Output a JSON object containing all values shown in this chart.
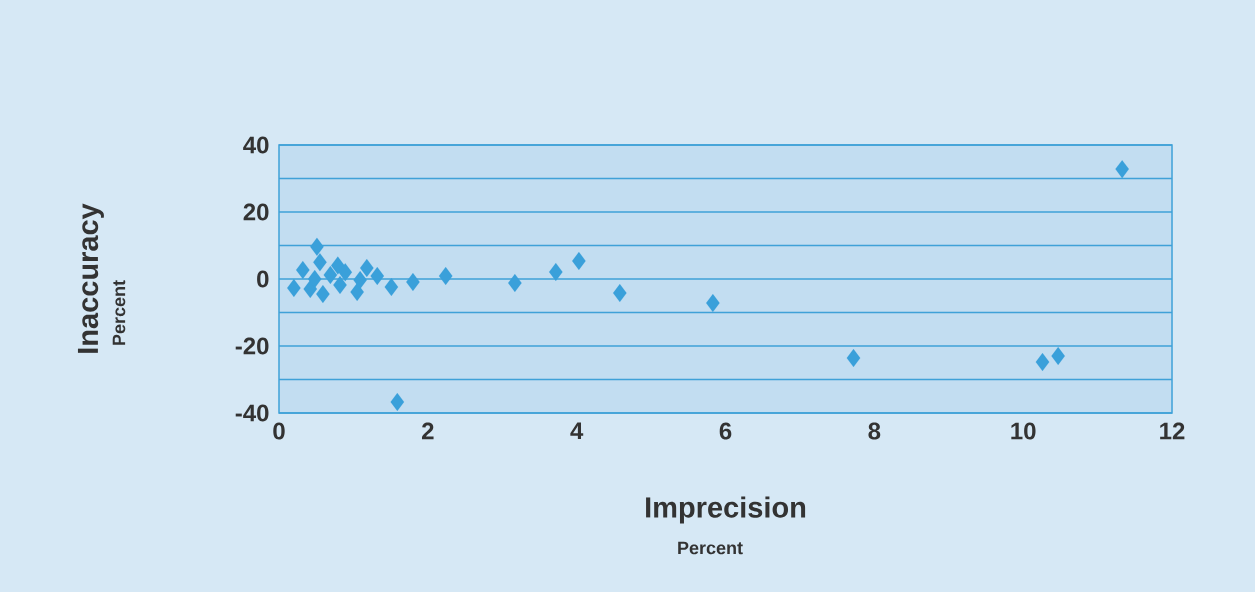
{
  "chart_data": {
    "type": "scatter",
    "xlabel": "Imprecision",
    "ylabel": "Inaccuracy",
    "annotations": [
      "Percent",
      "Percent"
    ],
    "x": [
      0.2,
      0.32,
      0.42,
      0.51,
      0.55,
      0.59,
      0.48,
      0.69,
      0.79,
      0.82,
      0.89,
      1.05,
      1.09,
      1.18,
      1.32,
      1.51,
      1.59,
      1.8,
      2.24,
      3.17,
      3.72,
      4.03,
      4.58,
      5.83,
      7.72,
      10.26,
      10.47,
      11.33
    ],
    "values": [
      -2.7,
      2.7,
      -3,
      9.6,
      5,
      -4.5,
      0,
      1.2,
      4,
      -1.8,
      2,
      -3.9,
      -0.3,
      3.3,
      0.9,
      -2.4,
      -36.7,
      -0.9,
      0.9,
      -1.2,
      2.1,
      5.4,
      -4.2,
      -7.2,
      -23.6,
      -24.8,
      -23,
      32.8
    ],
    "color": "#3aa0da",
    "marker": "diamond",
    "grid": "y",
    "xlim": [
      0,
      12
    ],
    "xticks": [
      0,
      2,
      4,
      6,
      8,
      10,
      12
    ],
    "ylim": [
      -40,
      40
    ],
    "yticks": [
      -40,
      {
        "value": -30,
        "label": null
      },
      -20,
      {
        "value": -10,
        "label": null
      },
      0,
      {
        "value": 10,
        "label": null
      },
      20,
      {
        "value": 30,
        "label": null
      },
      40
    ]
  }
}
